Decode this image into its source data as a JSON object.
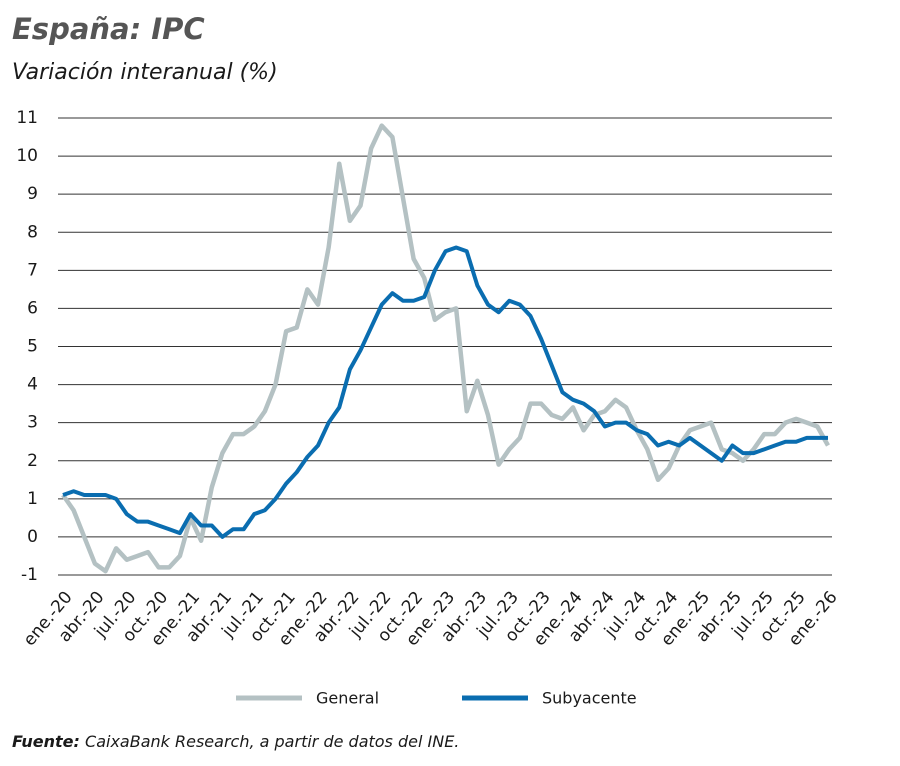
{
  "chart_data": {
    "type": "line",
    "title": "España: IPC",
    "subtitle": "Variación interanual (%)",
    "source_label": "Fuente:",
    "source": "CaixaBank Research, a partir de datos del INE.",
    "categories": [
      "ene.-20",
      null,
      null,
      "abr.-20",
      null,
      null,
      "jul.-20",
      null,
      null,
      "oct.-20",
      null,
      null,
      "ene.-21",
      null,
      null,
      "abr.-21",
      null,
      null,
      "jul.-21",
      null,
      null,
      "oct.-21",
      null,
      null,
      "ene.-22",
      null,
      null,
      "abr.-22",
      null,
      null,
      "jul.-22",
      null,
      null,
      "oct.-22",
      null,
      null,
      "ene.-23",
      null,
      null,
      "abr.-23",
      null,
      null,
      "jul.-23",
      null,
      null,
      "oct.-23",
      null,
      null,
      "ene.-24",
      null,
      null,
      "abr.-24",
      null,
      null,
      "jul.-24",
      null,
      null,
      "oct.-24",
      null,
      null,
      "ene.-25",
      null,
      null,
      "abr.-25",
      null,
      null,
      "jul.-25",
      null,
      null,
      "oct.-25",
      null,
      null,
      "ene.-26"
    ],
    "series": [
      {
        "name": "General",
        "color": "#b4c1c3",
        "values": [
          1.1,
          0.7,
          0.0,
          -0.7,
          -0.9,
          -0.3,
          -0.6,
          -0.5,
          -0.4,
          -0.8,
          -0.8,
          -0.5,
          0.5,
          -0.1,
          1.3,
          2.2,
          2.7,
          2.7,
          2.9,
          3.3,
          4.0,
          5.4,
          5.5,
          6.5,
          6.1,
          7.6,
          9.8,
          8.3,
          8.7,
          10.2,
          10.8,
          10.5,
          8.9,
          7.3,
          6.8,
          5.7,
          5.9,
          6.0,
          3.3,
          4.1,
          3.2,
          1.9,
          2.3,
          2.6,
          3.5,
          3.5,
          3.2,
          3.1,
          3.4,
          2.8,
          3.2,
          3.3,
          3.6,
          3.4,
          2.8,
          2.3,
          1.5,
          1.8,
          2.4,
          2.8,
          2.9,
          3.0,
          2.3,
          2.2,
          2.0,
          2.3,
          2.7,
          2.7,
          3.0,
          3.1,
          3.0,
          2.9,
          2.4
        ]
      },
      {
        "name": "Subyacente",
        "color": "#0a6db0",
        "values": [
          1.1,
          1.2,
          1.1,
          1.1,
          1.1,
          1.0,
          0.6,
          0.4,
          0.4,
          0.3,
          0.2,
          0.1,
          0.6,
          0.3,
          0.3,
          0.0,
          0.2,
          0.2,
          0.6,
          0.7,
          1.0,
          1.4,
          1.7,
          2.1,
          2.4,
          3.0,
          3.4,
          4.4,
          4.9,
          5.5,
          6.1,
          6.4,
          6.2,
          6.2,
          6.3,
          7.0,
          7.5,
          7.6,
          7.5,
          6.6,
          6.1,
          5.9,
          6.2,
          6.1,
          5.8,
          5.2,
          4.5,
          3.8,
          3.6,
          3.5,
          3.3,
          2.9,
          3.0,
          3.0,
          2.8,
          2.7,
          2.4,
          2.5,
          2.4,
          2.6,
          2.4,
          2.2,
          2.0,
          2.4,
          2.2,
          2.2,
          2.3,
          2.4,
          2.5,
          2.5,
          2.6,
          2.6,
          2.6
        ]
      }
    ],
    "ylim": [
      -1,
      11
    ],
    "yticks": [
      -1,
      0,
      1,
      2,
      3,
      4,
      5,
      6,
      7,
      8,
      9,
      10,
      11
    ],
    "grid": true
  }
}
